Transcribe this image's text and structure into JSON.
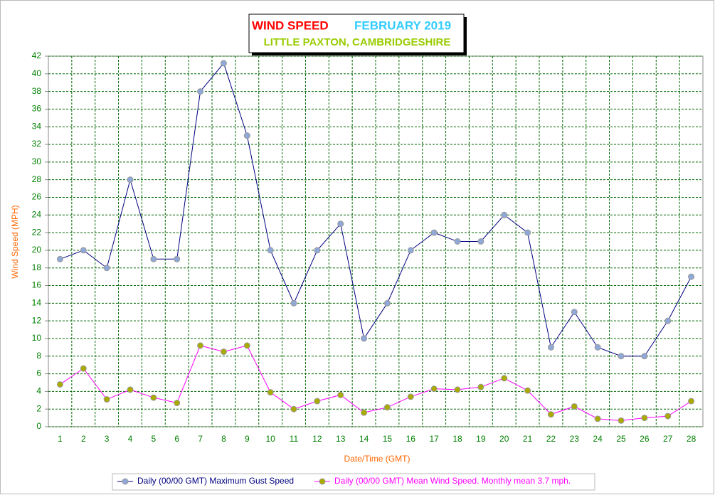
{
  "chart_data": {
    "type": "line",
    "title": [
      {
        "text": "WIND SPEED",
        "color": "#ff0000"
      },
      {
        "text": "FEBRUARY 2019",
        "color": "#33ccff"
      }
    ],
    "subtitle": "LITTLE PAXTON, CAMBRIDGESHIRE",
    "subtitle_color": "#99cc00",
    "x_label": "Date/Time (GMT)",
    "y_label": "Wind Speed (MPH)",
    "categories": [
      1,
      2,
      3,
      4,
      5,
      6,
      7,
      8,
      9,
      10,
      11,
      12,
      13,
      14,
      15,
      16,
      17,
      18,
      19,
      20,
      21,
      22,
      23,
      24,
      25,
      26,
      27,
      28
    ],
    "series": [
      {
        "name": "Daily (00/00 GMT) Maximum Gust Speed",
        "color": "#000080",
        "marker_color": "#8fa8d8",
        "values": [
          19,
          20,
          18,
          28,
          19,
          19,
          38,
          41.2,
          33,
          20,
          14,
          20,
          23,
          10,
          14,
          20,
          22,
          21,
          21,
          24,
          22,
          9,
          13,
          9,
          8,
          8,
          12,
          17
        ]
      },
      {
        "name": "Daily (00/00 GMT) Mean Wind Speed. Monthly mean 3.7 mph.",
        "color": "#ff00ff",
        "marker_color": "#aaaa00",
        "values": [
          4.8,
          6.6,
          3.1,
          4.2,
          3.3,
          2.7,
          9.2,
          8.5,
          9.2,
          3.9,
          2.0,
          2.9,
          3.6,
          1.6,
          2.2,
          3.4,
          4.3,
          4.2,
          4.5,
          5.5,
          4.1,
          1.4,
          2.3,
          0.9,
          0.7,
          1.0,
          1.2,
          2.9
        ]
      }
    ],
    "ylim": [
      0,
      42
    ],
    "yticks": [
      0,
      2,
      4,
      6,
      8,
      10,
      12,
      14,
      16,
      18,
      20,
      22,
      24,
      26,
      28,
      30,
      32,
      34,
      36,
      38,
      40,
      42
    ],
    "grid": true,
    "grid_color": "#006600",
    "tick_color": "#008000",
    "label_color": "#ff6600"
  }
}
